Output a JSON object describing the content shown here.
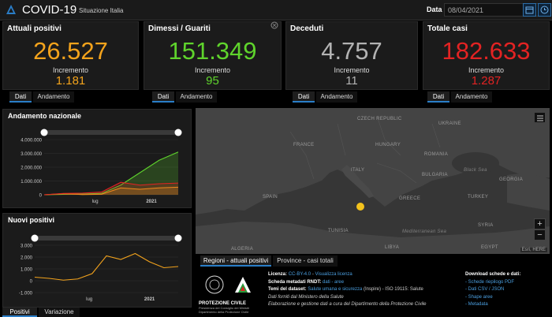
{
  "header": {
    "title": "COVID-19",
    "subtitle": "Situazione Italia",
    "date_label": "Data",
    "date_value": "08/04/2021"
  },
  "cards": [
    {
      "label": "Attuali positivi",
      "value": "26.527",
      "incr_label": "Incremento",
      "incr_value": "1.181",
      "color": "#f3a31c",
      "tabs": [
        "Dati",
        "Andamento"
      ]
    },
    {
      "label": "Dimessi / Guariti",
      "value": "151.349",
      "incr_label": "Incremento",
      "incr_value": "95",
      "color": "#5fd42c",
      "tabs": [
        "Dati",
        "Andamento"
      ]
    },
    {
      "label": "Deceduti",
      "value": "4.757",
      "incr_label": "Incremento",
      "incr_value": "11",
      "color": "#b3b3b3",
      "tabs": [
        "Dati",
        "Andamento"
      ]
    },
    {
      "label": "Totale casi",
      "value": "182.633",
      "incr_label": "Incremento",
      "incr_value": "1.287",
      "color": "#e32323",
      "tabs": [
        "Dati",
        "Andamento"
      ]
    }
  ],
  "charts": {
    "nazionale": {
      "title": "Andamento nazionale",
      "yticks": [
        "4.000.000",
        "3.000.000",
        "2.000.000",
        "1.000.000",
        "0"
      ],
      "xticks": [
        "lug",
        "2021"
      ]
    },
    "nuovi": {
      "title": "Nuovi positivi",
      "yticks": [
        "3.000",
        "2.000",
        "1.000",
        "0",
        "-1.000"
      ],
      "xticks": [
        "lug",
        "2021"
      ]
    },
    "bottom_tabs": [
      "Positivi",
      "Variazione"
    ]
  },
  "chart_data": [
    {
      "type": "area",
      "title": "Andamento nazionale",
      "x": [
        "2020-03",
        "2020-05",
        "2020-07",
        "2020-09",
        "2020-11",
        "2021-01",
        "2021-03",
        "2021-04"
      ],
      "series": [
        {
          "color": "#5fd42c",
          "values": [
            0,
            30000,
            60000,
            100000,
            700000,
            1600000,
            2500000,
            3100000
          ]
        },
        {
          "color": "#f3a31c",
          "values": [
            0,
            80000,
            20000,
            40000,
            500000,
            400000,
            500000,
            550000
          ]
        },
        {
          "color": "#e32323",
          "values": [
            0,
            100000,
            120000,
            200000,
            900000,
            700000,
            800000,
            850000
          ]
        }
      ],
      "ylim": [
        0,
        4000000
      ]
    },
    {
      "type": "line",
      "title": "Nuovi positivi",
      "x": [
        "2020-03",
        "2020-05",
        "2020-07",
        "2020-09",
        "2020-10",
        "2020-11",
        "2020-12",
        "2021-01",
        "2021-02",
        "2021-03",
        "2021-04"
      ],
      "series": [
        {
          "color": "#f3a31c",
          "values": [
            300,
            200,
            50,
            150,
            600,
            2100,
            1800,
            2300,
            1600,
            1100,
            1200
          ]
        }
      ],
      "ylim": [
        -1000,
        3000
      ]
    }
  ],
  "map": {
    "countries": [
      "FRANCE",
      "SPAIN",
      "CZECH REPUBLIC",
      "UKRAINE",
      "HUNGARY",
      "ROMANIA",
      "BULGARIA",
      "GREECE",
      "TURKEY",
      "GEORGIA",
      "SYRIA",
      "ITALY",
      "TUNISIA",
      "LIBYA",
      "EGYPT",
      "ALGERIA"
    ],
    "seas": [
      "Black Sea",
      "Mediterranean Sea"
    ],
    "attribution": "Esri, HERE",
    "tabs": [
      "Regioni - attuali positivi",
      "Province - casi totali"
    ]
  },
  "footer": {
    "org": "PROTEZIONE CIVILE",
    "org_sub1": "Presidenza del Consiglio dei Ministri",
    "org_sub2": "Dipartimento della Protezione Civile",
    "licenza_lbl": "Licenza:",
    "licenza_link1": "CC-BY-4.0",
    "licenza_sep": " - ",
    "licenza_link2": "Visualizza licenza",
    "scheda_lbl": "Scheda metadati RNDT:",
    "scheda_link": "dati - aree",
    "temi_lbl": "Temi del dataset:",
    "temi_link": "Salute umana e sicurezza",
    "temi_rest": " (Inspire) - ISO 19115: Salute",
    "fonti": "Dati forniti dal Ministero della Salute",
    "elaborazione": "Elaborazione e gestione dati a cura del Dipartimento della Protezione Civile",
    "download_title": "Download schede e dati:",
    "download_links": [
      "- Schede riepilogo PDF",
      "- Dati CSV / JSON",
      "- Shape aree",
      "- Metadata"
    ]
  }
}
